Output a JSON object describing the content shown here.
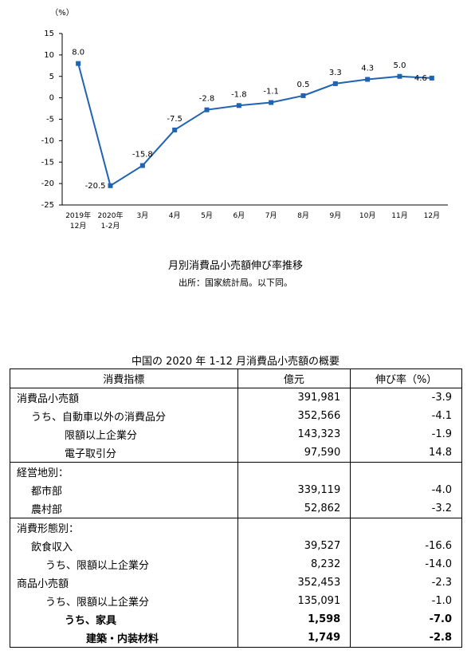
{
  "chart_data": {
    "type": "line",
    "y_unit": "（%）",
    "title": "月別消費品小売額伸び率推移",
    "source": "出所：国家統計局。以下同。",
    "categories": [
      "2019年\n12月",
      "2020年\n1-2月",
      "3月",
      "4月",
      "5月",
      "6月",
      "7月",
      "8月",
      "9月",
      "10月",
      "11月",
      "12月"
    ],
    "values": [
      8.0,
      -20.5,
      -15.8,
      -7.5,
      -2.8,
      -1.8,
      -1.1,
      0.5,
      3.3,
      4.3,
      5.0,
      4.6
    ],
    "value_labels": [
      "8.0",
      "-20.5",
      "-15.8",
      "-7.5",
      "-2.8",
      "-1.8",
      "-1.1",
      "0.5",
      "3.3",
      "4.3",
      "5.0",
      "4.6"
    ],
    "color": "#1f63b4",
    "ylim": [
      -25,
      15
    ],
    "yticks": [
      -25,
      -20,
      -15,
      -10,
      -5,
      0,
      5,
      10,
      15
    ],
    "grid": false
  },
  "table": {
    "title": "中国の 2020 年 1-12 月消費品小売額の概要",
    "header": [
      "消費指標",
      "億元",
      "伸び率（%）"
    ],
    "rows": [
      [
        "消費品小売額",
        "391,981",
        "-3.9"
      ],
      [
        "うち、自動車以外の消費品分",
        "352,566",
        "-4.1"
      ],
      [
        "限額以上企業分",
        "143,323",
        "-1.9"
      ],
      [
        "電子取引分",
        "97,590",
        "14.8"
      ],
      [
        "経営地別："
      ],
      [
        "都市部",
        "339,119",
        "-4.0"
      ],
      [
        "農村部",
        "52,862",
        "-3.2"
      ],
      [
        "消費形態別："
      ],
      [
        "飲食収入",
        "39,527",
        "-16.6"
      ],
      [
        "うち、限額以上企業分",
        "8,232",
        "-14.0"
      ],
      [
        "商品小売額",
        "352,453",
        "-2.3"
      ],
      [
        "うち、限額以上企業分",
        "135,091",
        "-1.0"
      ],
      [
        "うち、家具",
        "1,598",
        "-7.0"
      ],
      [
        "建築・内装材料",
        "1,749",
        "-2.8"
      ]
    ]
  }
}
